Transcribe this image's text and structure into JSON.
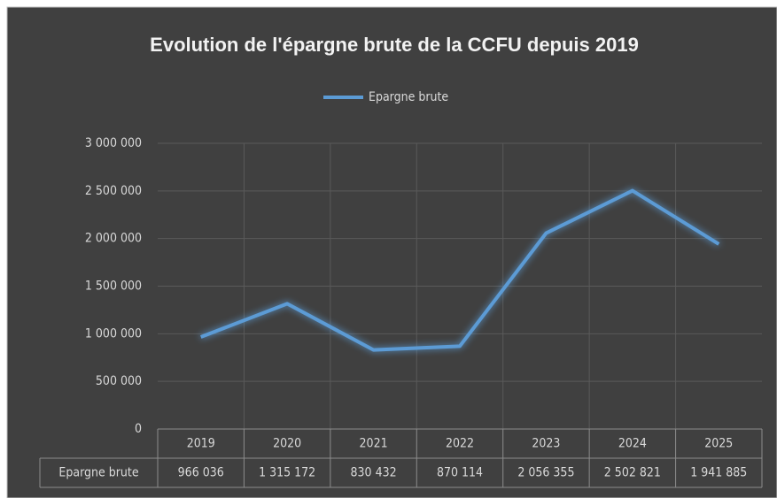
{
  "chart_data": {
    "type": "line",
    "title": "Evolution de l'épargne brute de la CCFU depuis 2019",
    "categories": [
      "2019",
      "2020",
      "2021",
      "2022",
      "2023",
      "2024",
      "2025"
    ],
    "series": [
      {
        "name": "Epargne brute",
        "color": "#5b9bd5",
        "values": [
          966036,
          1315172,
          830432,
          870114,
          2056355,
          2502821,
          1941885
        ],
        "value_labels": [
          "966 036",
          "1 315 172",
          "830 432",
          "870 114",
          "2 056 355",
          "2 502 821",
          "1 941 885"
        ]
      }
    ],
    "ylim": [
      0,
      3000000
    ],
    "yticks": [
      0,
      {
        "value": 500000,
        "label": "500 000"
      },
      {
        "value": 1000000,
        "label": "1 000 000"
      },
      {
        "value": 1500000,
        "label": "1 500 000"
      },
      {
        "value": 2000000,
        "label": "2 000 000"
      },
      {
        "value": 2500000,
        "label": "2 500 000"
      },
      {
        "value": 3000000,
        "label": "3 000 000"
      }
    ],
    "grid": true,
    "legend": "top"
  }
}
